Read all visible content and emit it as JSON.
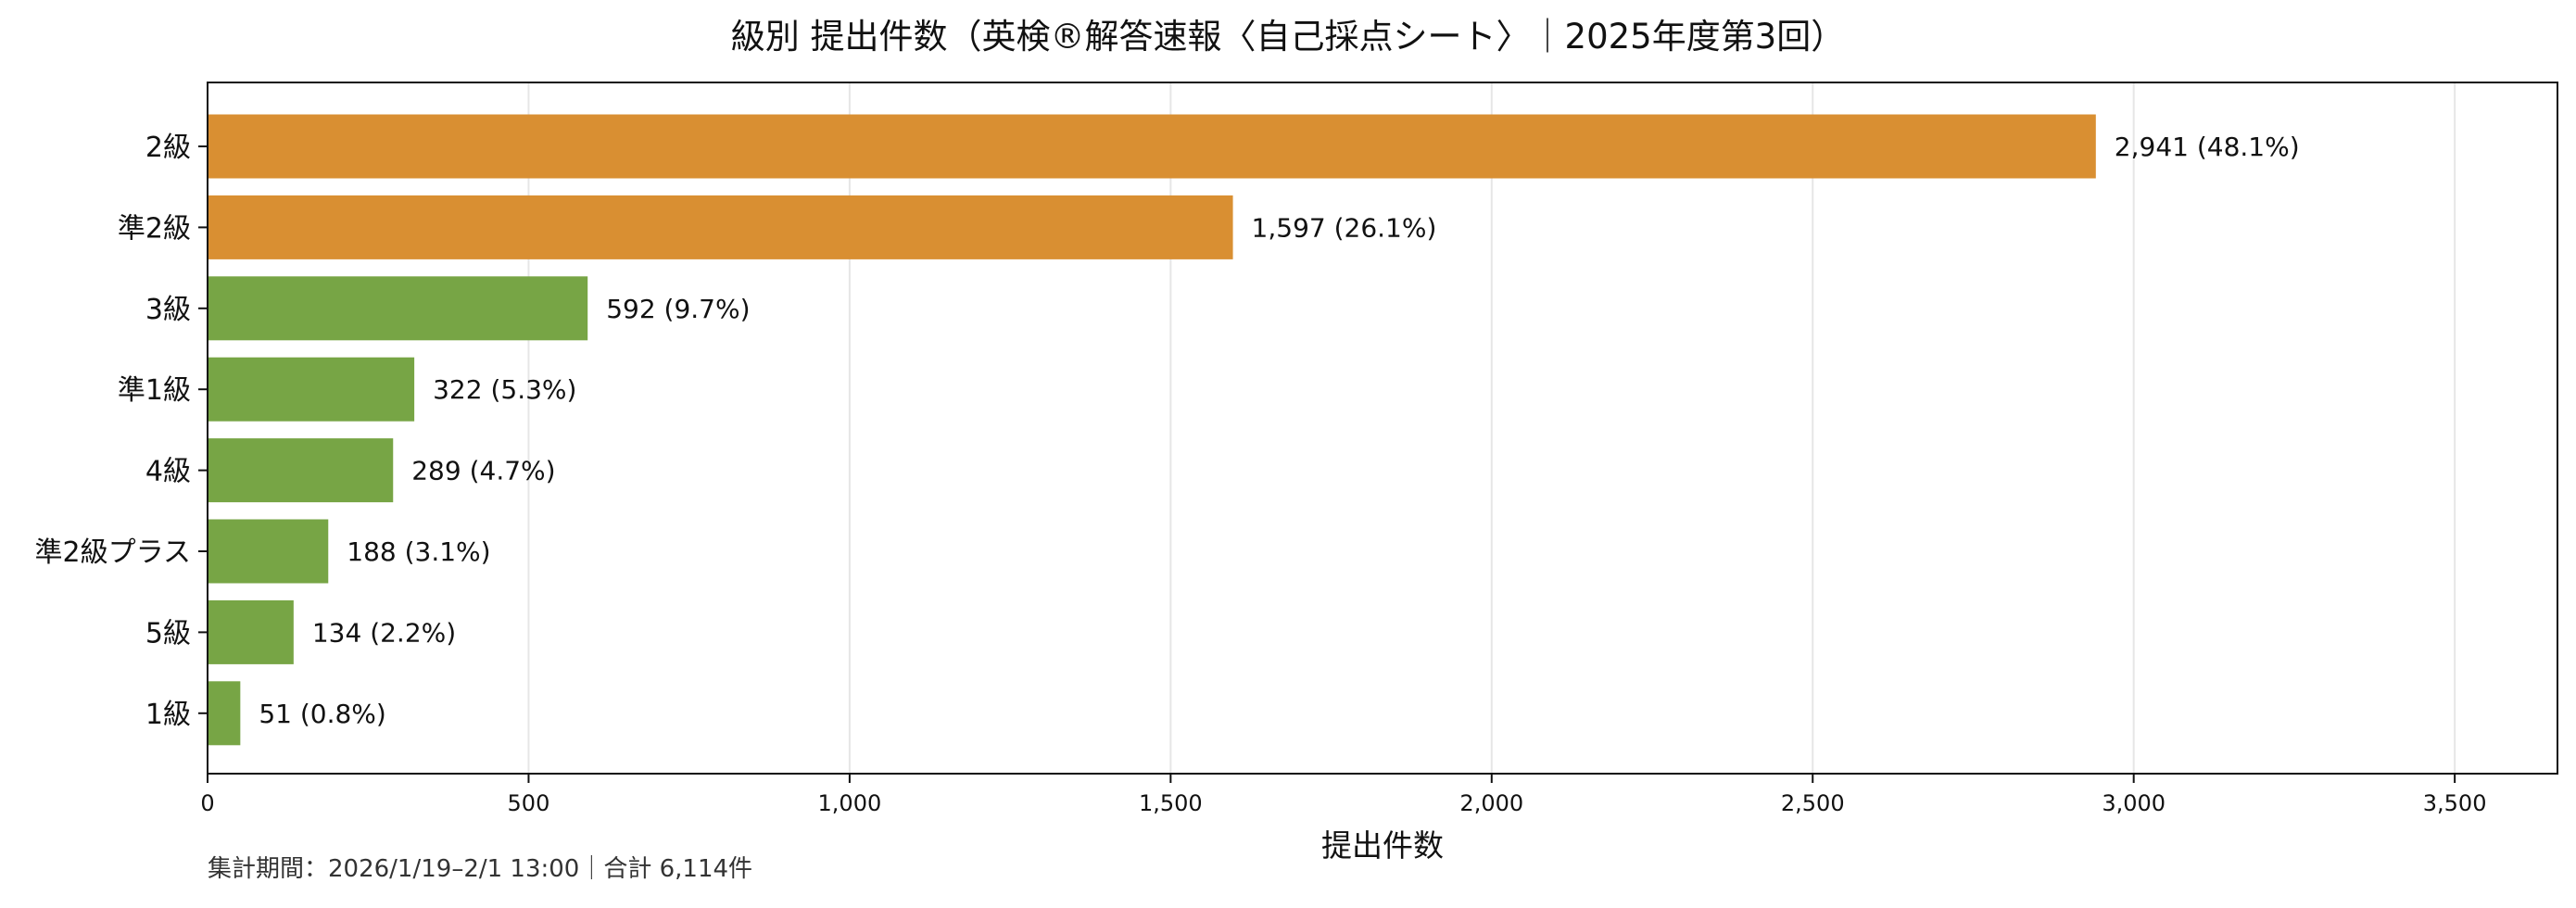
{
  "chart_data": {
    "type": "bar",
    "orientation": "horizontal",
    "title": "級別 提出件数（英検®解答速報〈自己採点シート〉｜2025年度第3回）",
    "xlabel": "提出件数",
    "ylabel": "",
    "xlim": [
      0,
      3660
    ],
    "x_ticks": [
      0,
      500,
      1000,
      1500,
      2000,
      2500,
      3000,
      3500
    ],
    "x_tick_labels": [
      "0",
      "500",
      "1,000",
      "1,500",
      "2,000",
      "2,500",
      "3,000",
      "3,500"
    ],
    "grid": "vertical",
    "categories": [
      "2級",
      "準2級",
      "3級",
      "準1級",
      "4級",
      "準2級プラス",
      "5級",
      "1級"
    ],
    "values": [
      2941,
      1597,
      592,
      322,
      289,
      188,
      134,
      51
    ],
    "percentages": [
      48.1,
      26.1,
      9.7,
      5.3,
      4.7,
      3.1,
      2.2,
      0.8
    ],
    "value_labels": [
      "2,941 (48.1%)",
      "1,597 (26.1%)",
      "592 (9.7%)",
      "322 (5.3%)",
      "289 (4.7%)",
      "188 (3.1%)",
      "134 (2.2%)",
      "51 (0.8%)"
    ],
    "bar_colors": [
      "#D98F32",
      "#D98F32",
      "#77A545",
      "#77A545",
      "#77A545",
      "#77A545",
      "#77A545",
      "#77A545"
    ],
    "footnote": "集計期間：2026/1/19–2/1 13:00｜合計 6,114件"
  }
}
